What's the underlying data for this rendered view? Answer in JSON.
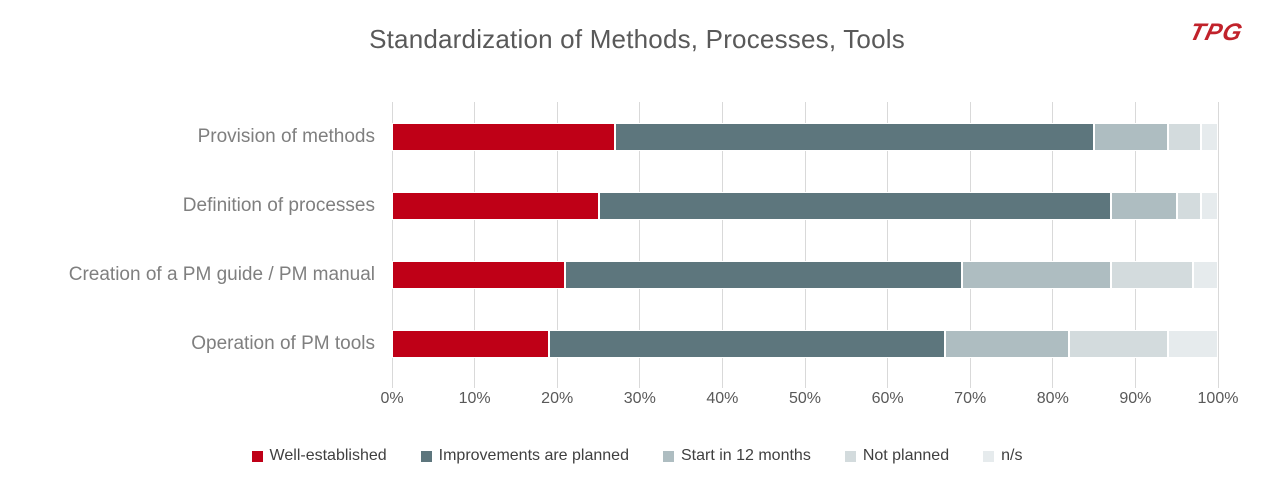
{
  "logo": {
    "text": "TPG",
    "color": "#c1222b"
  },
  "chart_data": {
    "type": "bar",
    "orientation": "horizontal",
    "stacked": true,
    "title": "Standardization of Methods, Processes, Tools",
    "categories": [
      "Provision of methods",
      "Definition of processes",
      "Creation of a PM guide / PM manual",
      "Operation of PM tools"
    ],
    "series": [
      {
        "name": "Well-established",
        "color": "#bf0017",
        "values": [
          27,
          25,
          21,
          19
        ]
      },
      {
        "name": "Improvements are planned",
        "color": "#5d767d",
        "values": [
          58,
          62,
          48,
          48
        ]
      },
      {
        "name": "Start in 12 months",
        "color": "#aebdc1",
        "values": [
          9,
          8,
          18,
          15
        ]
      },
      {
        "name": "Not planned",
        "color": "#d3dbdd",
        "values": [
          4,
          3,
          10,
          12
        ]
      },
      {
        "name": "n/s",
        "color": "#e6ebed",
        "values": [
          2,
          2,
          3,
          6
        ]
      }
    ],
    "xlim": [
      0,
      100
    ],
    "x_tick_labels": [
      "0%",
      "10%",
      "20%",
      "30%",
      "40%",
      "50%",
      "60%",
      "70%",
      "80%",
      "90%",
      "100%"
    ],
    "grid": true,
    "grid_color": "#d9d9d9",
    "legend_position": "bottom"
  }
}
